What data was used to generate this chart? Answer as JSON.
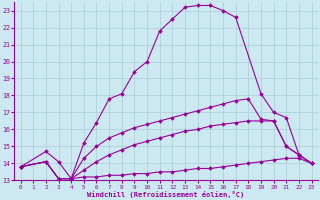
{
  "xlabel": "Windchill (Refroidissement éolien,°C)",
  "background_color": "#cce8f0",
  "grid_color": "#aaccd8",
  "line_color": "#990099",
  "xlim": [
    -0.5,
    23.5
  ],
  "ylim": [
    13,
    23.5
  ],
  "yticks": [
    13,
    14,
    15,
    16,
    17,
    18,
    19,
    20,
    21,
    22,
    23
  ],
  "xticks": [
    0,
    1,
    2,
    3,
    4,
    5,
    6,
    7,
    8,
    9,
    10,
    11,
    12,
    13,
    14,
    15,
    16,
    17,
    18,
    19,
    20,
    21,
    22,
    23
  ],
  "series": [
    {
      "x": [
        0,
        2,
        3,
        4,
        5,
        6,
        7,
        8,
        9,
        10,
        11,
        12,
        13,
        14,
        15,
        16,
        17,
        19,
        20,
        21,
        22,
        23
      ],
      "y": [
        13.8,
        14.7,
        14.1,
        13.1,
        15.2,
        16.4,
        17.8,
        18.1,
        19.4,
        20.0,
        21.8,
        22.5,
        23.2,
        23.3,
        23.3,
        23.0,
        22.6,
        18.1,
        17.0,
        16.7,
        14.5,
        14.0
      ]
    },
    {
      "x": [
        0,
        2,
        3,
        4,
        5,
        6,
        7,
        8,
        9,
        10,
        11,
        12,
        13,
        14,
        15,
        16,
        17,
        18,
        19,
        20,
        21,
        22,
        23
      ],
      "y": [
        13.8,
        14.1,
        13.1,
        13.1,
        14.3,
        15.0,
        15.5,
        15.8,
        16.1,
        16.3,
        16.5,
        16.7,
        16.9,
        17.1,
        17.3,
        17.5,
        17.7,
        17.8,
        16.6,
        16.5,
        15.0,
        14.5,
        14.0
      ]
    },
    {
      "x": [
        0,
        2,
        3,
        4,
        5,
        6,
        7,
        8,
        9,
        10,
        11,
        12,
        13,
        14,
        15,
        16,
        17,
        18,
        19,
        20,
        21,
        22,
        23
      ],
      "y": [
        13.8,
        14.1,
        13.1,
        13.1,
        13.6,
        14.1,
        14.5,
        14.8,
        15.1,
        15.3,
        15.5,
        15.7,
        15.9,
        16.0,
        16.2,
        16.3,
        16.4,
        16.5,
        16.5,
        16.5,
        15.0,
        14.5,
        14.0
      ]
    },
    {
      "x": [
        0,
        2,
        3,
        4,
        5,
        6,
        7,
        8,
        9,
        10,
        11,
        12,
        13,
        14,
        15,
        16,
        17,
        18,
        19,
        20,
        21,
        22,
        23
      ],
      "y": [
        13.8,
        14.1,
        13.1,
        13.1,
        13.2,
        13.2,
        13.3,
        13.3,
        13.4,
        13.4,
        13.5,
        13.5,
        13.6,
        13.7,
        13.7,
        13.8,
        13.9,
        14.0,
        14.1,
        14.2,
        14.3,
        14.3,
        14.0
      ]
    }
  ]
}
